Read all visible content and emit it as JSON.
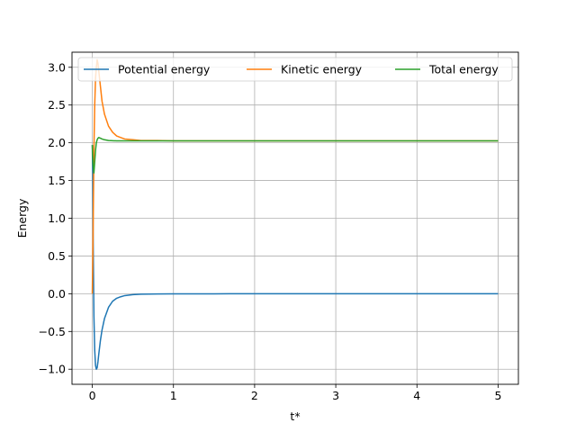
{
  "chart_data": {
    "type": "line",
    "title": "",
    "xlabel": "t*",
    "ylabel": "Energy",
    "xlim": [
      -0.25,
      5.25
    ],
    "ylim": [
      -1.2,
      3.2
    ],
    "grid": true,
    "legend_position": "top",
    "x_ticks": [
      0,
      1,
      2,
      3,
      4,
      5
    ],
    "y_ticks": [
      -1.0,
      -0.5,
      0.0,
      0.5,
      1.0,
      1.5,
      2.0,
      2.5,
      3.0
    ],
    "x_tick_labels": [
      "0",
      "1",
      "2",
      "3",
      "4",
      "5"
    ],
    "y_tick_labels": [
      "−1.0",
      "−0.5",
      "0.0",
      "0.5",
      "1.0",
      "1.5",
      "2.0",
      "2.5",
      "3.0"
    ],
    "series": [
      {
        "name": "Potential energy",
        "color": "#1f77b4",
        "x": [
          0,
          0.005,
          0.01,
          0.02,
          0.03,
          0.04,
          0.05,
          0.06,
          0.07,
          0.08,
          0.1,
          0.12,
          0.15,
          0.2,
          0.25,
          0.3,
          0.35,
          0.4,
          0.5,
          0.6,
          0.8,
          1.0,
          1.5,
          2.0,
          3.0,
          4.0,
          5.0
        ],
        "values": [
          1.97,
          1.6,
          0.8,
          -0.3,
          -0.75,
          -0.95,
          -1.0,
          -0.98,
          -0.9,
          -0.8,
          -0.62,
          -0.48,
          -0.33,
          -0.18,
          -0.1,
          -0.06,
          -0.04,
          -0.025,
          -0.012,
          -0.006,
          -0.003,
          -0.002,
          -0.001,
          0.0,
          0.0,
          0.0,
          0.0
        ]
      },
      {
        "name": "Kinetic energy",
        "color": "#ff7f0e",
        "x": [
          0,
          0.01,
          0.02,
          0.03,
          0.04,
          0.05,
          0.06,
          0.07,
          0.08,
          0.1,
          0.12,
          0.15,
          0.2,
          0.25,
          0.3,
          0.35,
          0.4,
          0.5,
          0.6,
          0.8,
          1.0,
          1.5,
          2.0,
          3.0,
          4.0,
          5.0
        ],
        "values": [
          0.0,
          0.8,
          1.9,
          2.5,
          2.85,
          3.0,
          3.1,
          3.05,
          2.95,
          2.75,
          2.55,
          2.38,
          2.22,
          2.14,
          2.09,
          2.07,
          2.05,
          2.04,
          2.03,
          2.03,
          2.025,
          2.025,
          2.025,
          2.025,
          2.025,
          2.025
        ]
      },
      {
        "name": "Total energy",
        "color": "#2ca02c",
        "x": [
          0,
          0.01,
          0.02,
          0.03,
          0.04,
          0.05,
          0.06,
          0.07,
          0.08,
          0.1,
          0.12,
          0.15,
          0.2,
          0.3,
          0.4,
          0.5,
          1.0,
          2.0,
          3.0,
          4.0,
          5.0
        ],
        "values": [
          1.97,
          1.7,
          1.6,
          1.75,
          1.9,
          2.0,
          2.04,
          2.06,
          2.07,
          2.06,
          2.05,
          2.04,
          2.03,
          2.025,
          2.025,
          2.025,
          2.025,
          2.025,
          2.025,
          2.025,
          2.025
        ]
      }
    ]
  }
}
